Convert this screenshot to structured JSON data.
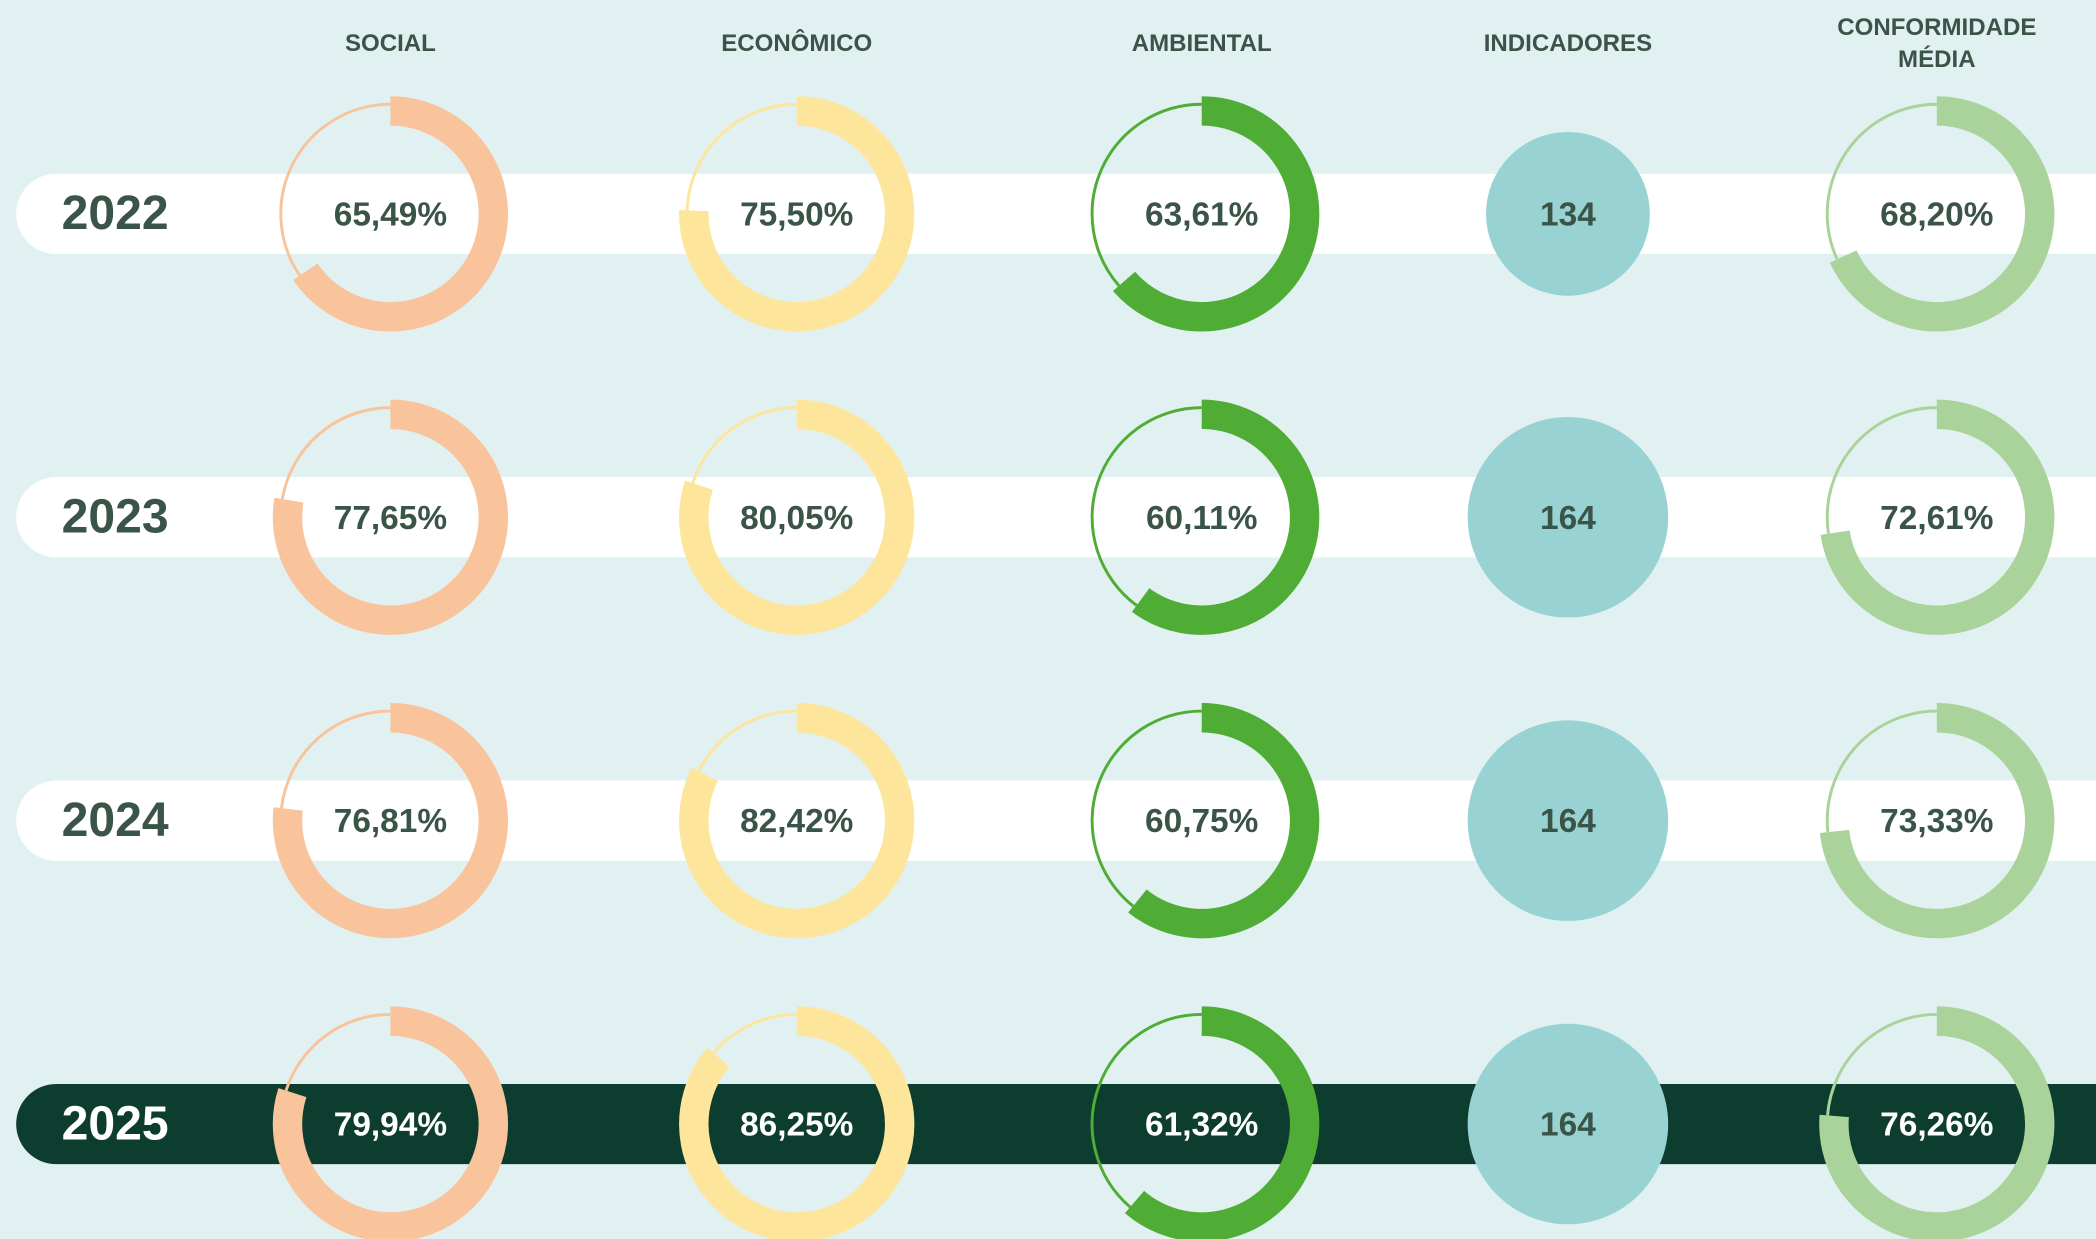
{
  "chart_data": {
    "type": "donut",
    "categories": [
      "2022",
      "2023",
      "2024",
      "2025"
    ],
    "series": [
      {
        "name": "SOCIAL",
        "color": "#f9c39b",
        "values": [
          65.49,
          77.65,
          76.81,
          79.94
        ],
        "value_labels": [
          "65,49%",
          "77,65%",
          "76,81%",
          "79,94%"
        ]
      },
      {
        "name": "ECONÔMICO",
        "color": "#fde59b",
        "values": [
          75.5,
          80.05,
          82.42,
          86.25
        ],
        "value_labels": [
          "75,50%",
          "80,05%",
          "82,42%",
          "86,25%"
        ]
      },
      {
        "name": "AMBIENTAL",
        "color": "#4fac34",
        "values": [
          63.61,
          60.11,
          60.75,
          61.32
        ],
        "value_labels": [
          "63,61%",
          "60,11%",
          "60,75%",
          "61,32%"
        ]
      },
      {
        "name": "INDICADORES",
        "color": "#98d2d3",
        "type": "bubble",
        "values": [
          134,
          164,
          164,
          164
        ]
      },
      {
        "name": "CONFORMIDADE MÉDIA",
        "color": "#a9d39a",
        "values": [
          68.2,
          72.61,
          73.33,
          76.26
        ],
        "value_labels": [
          "68,20%",
          "72,61%",
          "73,33%",
          "76,26%"
        ]
      }
    ]
  }
}
